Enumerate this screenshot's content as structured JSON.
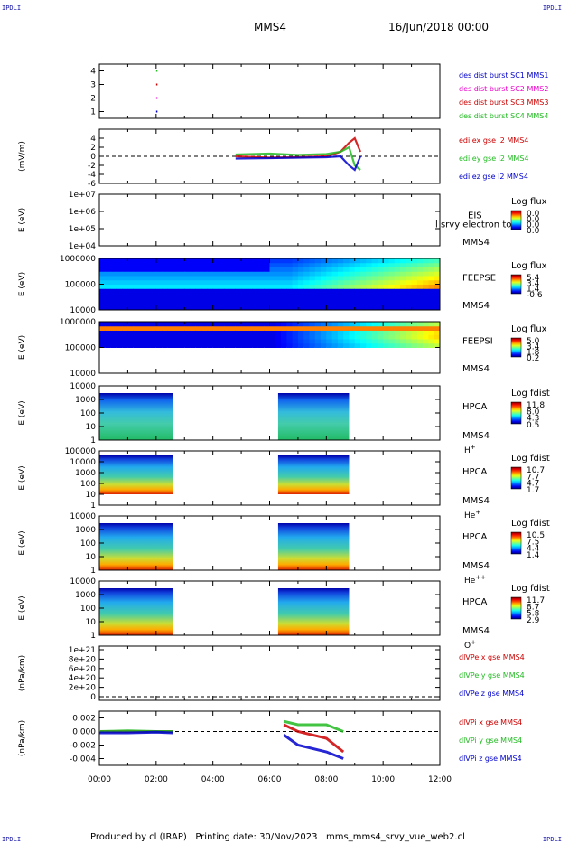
{
  "corners": {
    "tl": "IPDLI",
    "tr": "IPDLI",
    "bl": "IPDLI",
    "br": "IPDLI"
  },
  "header": {
    "spacecraft": "MMS4",
    "date": "16/Jun/2018 00:00"
  },
  "footer": {
    "text": "Produced by cl (IRAP)   Printing date: 30/Nov/2023   mms_mms4_srvy_vue_web2.cl"
  },
  "colors": {
    "red": "#cc0000",
    "green": "#22bb22",
    "blue": "#0000cc",
    "magenta": "#ee00cc"
  },
  "chart_data": [
    {
      "type": "scatter",
      "panel": "des-dist",
      "ylim": [
        0.5,
        4.5
      ],
      "yticks": [
        "1",
        "2",
        "3",
        "4"
      ],
      "legend": [
        "des dist burst SC1 MMS1",
        "des dist burst SC2 MMS2",
        "des dist burst SC3 MMS3",
        "des dist burst SC4 MMS4"
      ],
      "series": [
        {
          "name": "des dist burst SC1 MMS1",
          "x": [
            2.0
          ],
          "y": [
            1
          ]
        },
        {
          "name": "des dist burst SC2 MMS2",
          "x": [
            2.0
          ],
          "y": [
            2
          ]
        },
        {
          "name": "des dist burst SC3 MMS3",
          "x": [
            2.0
          ],
          "y": [
            3
          ]
        },
        {
          "name": "des dist burst SC4 MMS4",
          "x": [
            2.0
          ],
          "y": [
            4
          ]
        }
      ]
    },
    {
      "type": "line",
      "panel": "edi",
      "ylabel": "(mV/m)",
      "ylim": [
        -6,
        6
      ],
      "yticks": [
        "4",
        "2",
        "0",
        "-2",
        "-4",
        "-6"
      ],
      "legend": [
        "edi ex gse l2 MMS4",
        "edi ey gse l2 MMS4",
        "edi ez gse l2 MMS4"
      ],
      "series": [
        {
          "name": "edi ex gse l2 MMS4",
          "x": [
            4.8,
            6,
            7,
            8,
            8.5,
            8.8,
            9.0,
            9.2
          ],
          "y": [
            0,
            -0.3,
            -0.2,
            0,
            1,
            3,
            4,
            1
          ]
        },
        {
          "name": "edi ey gse l2 MMS4",
          "x": [
            4.8,
            6,
            7,
            8,
            8.5,
            8.8,
            9.0,
            9.2
          ],
          "y": [
            0.4,
            0.6,
            0.3,
            0.5,
            1,
            2,
            -2,
            -3
          ]
        },
        {
          "name": "edi ez gse l2 MMS4",
          "x": [
            4.8,
            6,
            7,
            8,
            8.5,
            8.8,
            9.0,
            9.2
          ],
          "y": [
            -0.5,
            -0.4,
            -0.3,
            -0.2,
            0,
            -2,
            -3,
            0
          ]
        }
      ]
    },
    {
      "type": "heatmap",
      "panel": "eis",
      "ylabel": "E (eV)",
      "yticks": [
        "1e+07",
        "1e+06",
        "1e+05",
        "1e+04"
      ],
      "instrument": [
        "EIS",
        "MMS4"
      ],
      "overlay": "l srvy electron to",
      "cbar_title": "Log flux",
      "cbar_ticks": [
        "0.0",
        "0.0",
        "0.0",
        "0.0"
      ]
    },
    {
      "type": "heatmap",
      "panel": "feepse",
      "ylabel": "E (eV)",
      "yticks": [
        "1000000",
        "100000",
        "10000"
      ],
      "instrument": [
        "FEEPSE",
        "MMS4"
      ],
      "cbar_title": "Log flux",
      "cbar_ticks": [
        "5.4",
        "3.4",
        "1.4",
        "-0.6"
      ]
    },
    {
      "type": "heatmap",
      "panel": "feepsi",
      "ylabel": "E (eV)",
      "yticks": [
        "1000000",
        "100000",
        "10000"
      ],
      "instrument": [
        "FEEPSI",
        "MMS4"
      ],
      "cbar_title": "Log flux",
      "cbar_ticks": [
        "5.0",
        "3.4",
        "1.8",
        "0.2"
      ]
    },
    {
      "type": "heatmap",
      "panel": "hpca-h",
      "ylabel": "E (eV)",
      "yticks": [
        "10000",
        "1000",
        "100",
        "10",
        "1"
      ],
      "instrument": [
        "HPCA",
        "MMS4"
      ],
      "species_base": "H",
      "species_sup": "+",
      "cbar_title": "Log fdist",
      "cbar_ticks": [
        "11.8",
        "8.0",
        "4.3",
        "0.5"
      ]
    },
    {
      "type": "heatmap",
      "panel": "hpca-he",
      "ylabel": "E (eV)",
      "yticks": [
        "100000",
        "10000",
        "1000",
        "100",
        "10",
        "1"
      ],
      "instrument": [
        "HPCA",
        "MMS4"
      ],
      "species_base": "He",
      "species_sup": "+",
      "cbar_title": "Log fdist",
      "cbar_ticks": [
        "10.7",
        "7.7",
        "4.7",
        "1.7"
      ]
    },
    {
      "type": "heatmap",
      "panel": "hpca-hepp",
      "ylabel": "E (eV)",
      "yticks": [
        "10000",
        "1000",
        "100",
        "10",
        "1"
      ],
      "instrument": [
        "HPCA",
        "MMS4"
      ],
      "species_base": "He",
      "species_sup": "++",
      "cbar_title": "Log fdist",
      "cbar_ticks": [
        "10.5",
        "7.5",
        "4.4",
        "1.4"
      ]
    },
    {
      "type": "heatmap",
      "panel": "hpca-o",
      "ylabel": "E (eV)",
      "yticks": [
        "10000",
        "1000",
        "100",
        "10",
        "1"
      ],
      "instrument": [
        "HPCA",
        "MMS4"
      ],
      "species_base": "O",
      "species_sup": "+",
      "cbar_title": "Log fdist",
      "cbar_ticks": [
        "11.7",
        "8.7",
        "5.8",
        "2.9"
      ]
    },
    {
      "type": "line",
      "panel": "divpe",
      "ylabel": "(nPa/km)",
      "yticks": [
        "1e+21",
        "8e+20",
        "6e+20",
        "4e+20",
        "2e+20",
        "0"
      ],
      "legend": [
        "dlVPe x gse MMS4",
        "dlVPe y gse MMS4",
        "dlVPe z gse MMS4"
      ],
      "series": []
    },
    {
      "type": "line",
      "panel": "divpi",
      "ylabel": "(nPa/km)",
      "ylim": [
        -0.005,
        0.003
      ],
      "yticks": [
        "0.002",
        "0.000",
        "-0.002",
        "-0.004"
      ],
      "legend": [
        "dlVPi x gse MMS4",
        "dlVPi y gse MMS4",
        "dlVPi z gse MMS4"
      ],
      "series": [
        {
          "name": "dlVPi x gse MMS4",
          "x": [
            0,
            1,
            2,
            2.6,
            6.5,
            7,
            8,
            8.6
          ],
          "y": [
            0,
            0,
            0,
            0,
            0.001,
            0,
            -0.001,
            -0.003
          ]
        },
        {
          "name": "dlVPi y gse MMS4",
          "x": [
            0,
            1,
            2,
            2.6,
            6.5,
            7,
            8,
            8.6
          ],
          "y": [
            0,
            0.0001,
            0,
            0,
            0.0015,
            0.001,
            0.001,
            0
          ]
        },
        {
          "name": "dlVPi z gse MMS4",
          "x": [
            0,
            1,
            2,
            2.6,
            6.5,
            7,
            8,
            8.6
          ],
          "y": [
            -0.0002,
            -0.0002,
            -0.0001,
            -0.0002,
            -0.0005,
            -0.002,
            -0.003,
            -0.004
          ]
        }
      ]
    }
  ],
  "xaxis": {
    "ticks": [
      "00:00",
      "02:00",
      "04:00",
      "06:00",
      "08:00",
      "10:00",
      "12:00"
    ],
    "xlim": [
      0,
      12
    ]
  }
}
